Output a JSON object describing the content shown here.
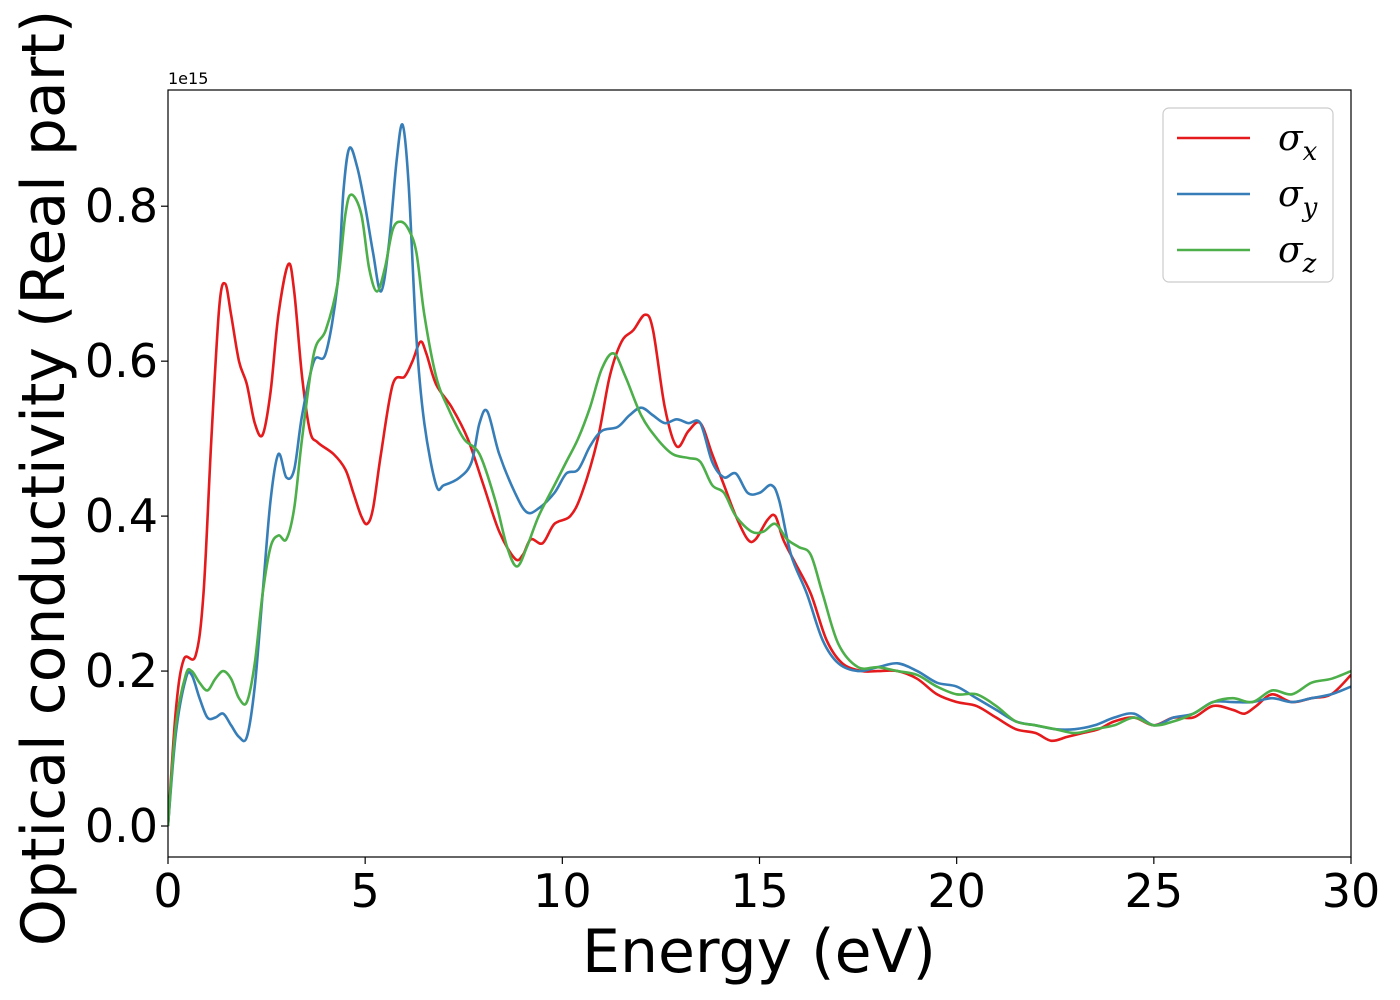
{
  "chart_data": {
    "type": "line",
    "xlabel": "Energy (eV)",
    "ylabel": "Optical conductivity (Real part)",
    "y_offset_label": "1e15",
    "xlim": [
      0,
      30
    ],
    "ylim": [
      -0.04,
      0.95
    ],
    "x_ticks": [
      0,
      5,
      10,
      15,
      20,
      25,
      30
    ],
    "x_tick_labels": [
      "0",
      "5",
      "10",
      "15",
      "20",
      "25",
      "30"
    ],
    "y_ticks": [
      0.0,
      0.2,
      0.4,
      0.6,
      0.8
    ],
    "y_tick_labels": [
      "0.0",
      "0.2",
      "0.4",
      "0.6",
      "0.8"
    ],
    "grid": false,
    "legend_position": "top-right",
    "series": [
      {
        "name": "σx",
        "symbol": "σ",
        "subscript": "x",
        "color": "#e41a1c",
        "points": [
          [
            0,
            0
          ],
          [
            0.2,
            0.15
          ],
          [
            0.4,
            0.215
          ],
          [
            0.7,
            0.22
          ],
          [
            0.9,
            0.3
          ],
          [
            1.1,
            0.5
          ],
          [
            1.3,
            0.67
          ],
          [
            1.45,
            0.7
          ],
          [
            1.6,
            0.66
          ],
          [
            1.8,
            0.6
          ],
          [
            2.0,
            0.57
          ],
          [
            2.2,
            0.52
          ],
          [
            2.4,
            0.505
          ],
          [
            2.6,
            0.56
          ],
          [
            2.8,
            0.66
          ],
          [
            3.05,
            0.725
          ],
          [
            3.2,
            0.69
          ],
          [
            3.4,
            0.58
          ],
          [
            3.6,
            0.51
          ],
          [
            3.8,
            0.495
          ],
          [
            4.2,
            0.48
          ],
          [
            4.5,
            0.46
          ],
          [
            4.7,
            0.43
          ],
          [
            4.9,
            0.4
          ],
          [
            5.05,
            0.39
          ],
          [
            5.2,
            0.41
          ],
          [
            5.4,
            0.48
          ],
          [
            5.7,
            0.57
          ],
          [
            6.0,
            0.58
          ],
          [
            6.2,
            0.6
          ],
          [
            6.4,
            0.625
          ],
          [
            6.55,
            0.61
          ],
          [
            6.8,
            0.57
          ],
          [
            7.2,
            0.54
          ],
          [
            7.6,
            0.5
          ],
          [
            8.0,
            0.44
          ],
          [
            8.4,
            0.38
          ],
          [
            8.8,
            0.345
          ],
          [
            9.0,
            0.35
          ],
          [
            9.2,
            0.37
          ],
          [
            9.5,
            0.365
          ],
          [
            9.8,
            0.39
          ],
          [
            10.2,
            0.4
          ],
          [
            10.5,
            0.43
          ],
          [
            10.9,
            0.5
          ],
          [
            11.2,
            0.58
          ],
          [
            11.5,
            0.625
          ],
          [
            11.8,
            0.64
          ],
          [
            12.1,
            0.66
          ],
          [
            12.3,
            0.64
          ],
          [
            12.6,
            0.54
          ],
          [
            12.9,
            0.49
          ],
          [
            13.2,
            0.51
          ],
          [
            13.5,
            0.52
          ],
          [
            13.8,
            0.48
          ],
          [
            14.1,
            0.44
          ],
          [
            14.4,
            0.4
          ],
          [
            14.7,
            0.37
          ],
          [
            14.9,
            0.37
          ],
          [
            15.2,
            0.395
          ],
          [
            15.4,
            0.4
          ],
          [
            15.6,
            0.37
          ],
          [
            15.9,
            0.34
          ],
          [
            16.3,
            0.3
          ],
          [
            16.7,
            0.24
          ],
          [
            17.1,
            0.21
          ],
          [
            17.6,
            0.2
          ],
          [
            18.0,
            0.2
          ],
          [
            18.5,
            0.2
          ],
          [
            19.0,
            0.19
          ],
          [
            19.5,
            0.17
          ],
          [
            20.0,
            0.16
          ],
          [
            20.5,
            0.155
          ],
          [
            21.0,
            0.14
          ],
          [
            21.5,
            0.125
          ],
          [
            22.0,
            0.12
          ],
          [
            22.4,
            0.11
          ],
          [
            22.8,
            0.115
          ],
          [
            23.2,
            0.12
          ],
          [
            23.6,
            0.125
          ],
          [
            24.0,
            0.135
          ],
          [
            24.5,
            0.14
          ],
          [
            25.0,
            0.13
          ],
          [
            25.5,
            0.14
          ],
          [
            26.0,
            0.14
          ],
          [
            26.5,
            0.155
          ],
          [
            27.0,
            0.15
          ],
          [
            27.3,
            0.145
          ],
          [
            27.6,
            0.155
          ],
          [
            28.0,
            0.17
          ],
          [
            28.5,
            0.16
          ],
          [
            29.0,
            0.165
          ],
          [
            29.5,
            0.17
          ],
          [
            30.0,
            0.195
          ]
        ]
      },
      {
        "name": "σy",
        "symbol": "σ",
        "subscript": "y",
        "color": "#377eb8",
        "points": [
          [
            0,
            0
          ],
          [
            0.2,
            0.12
          ],
          [
            0.45,
            0.19
          ],
          [
            0.6,
            0.195
          ],
          [
            0.8,
            0.165
          ],
          [
            1.0,
            0.14
          ],
          [
            1.2,
            0.14
          ],
          [
            1.4,
            0.145
          ],
          [
            1.6,
            0.13
          ],
          [
            1.8,
            0.115
          ],
          [
            2.0,
            0.115
          ],
          [
            2.2,
            0.18
          ],
          [
            2.4,
            0.3
          ],
          [
            2.6,
            0.42
          ],
          [
            2.8,
            0.48
          ],
          [
            3.0,
            0.45
          ],
          [
            3.2,
            0.46
          ],
          [
            3.4,
            0.53
          ],
          [
            3.7,
            0.6
          ],
          [
            4.0,
            0.61
          ],
          [
            4.3,
            0.7
          ],
          [
            4.45,
            0.82
          ],
          [
            4.6,
            0.875
          ],
          [
            4.8,
            0.85
          ],
          [
            5.0,
            0.8
          ],
          [
            5.2,
            0.74
          ],
          [
            5.4,
            0.69
          ],
          [
            5.6,
            0.75
          ],
          [
            5.8,
            0.86
          ],
          [
            5.95,
            0.905
          ],
          [
            6.1,
            0.83
          ],
          [
            6.3,
            0.63
          ],
          [
            6.5,
            0.52
          ],
          [
            6.8,
            0.44
          ],
          [
            7.0,
            0.44
          ],
          [
            7.4,
            0.45
          ],
          [
            7.7,
            0.47
          ],
          [
            7.9,
            0.52
          ],
          [
            8.1,
            0.535
          ],
          [
            8.4,
            0.48
          ],
          [
            8.8,
            0.43
          ],
          [
            9.1,
            0.405
          ],
          [
            9.4,
            0.41
          ],
          [
            9.8,
            0.43
          ],
          [
            10.1,
            0.455
          ],
          [
            10.4,
            0.46
          ],
          [
            10.7,
            0.49
          ],
          [
            11.0,
            0.51
          ],
          [
            11.4,
            0.515
          ],
          [
            11.7,
            0.53
          ],
          [
            12.0,
            0.54
          ],
          [
            12.3,
            0.53
          ],
          [
            12.6,
            0.52
          ],
          [
            12.9,
            0.525
          ],
          [
            13.2,
            0.52
          ],
          [
            13.5,
            0.52
          ],
          [
            13.8,
            0.47
          ],
          [
            14.1,
            0.45
          ],
          [
            14.4,
            0.455
          ],
          [
            14.7,
            0.43
          ],
          [
            15.0,
            0.43
          ],
          [
            15.3,
            0.44
          ],
          [
            15.5,
            0.42
          ],
          [
            15.8,
            0.35
          ],
          [
            16.2,
            0.3
          ],
          [
            16.6,
            0.24
          ],
          [
            17.0,
            0.21
          ],
          [
            17.5,
            0.2
          ],
          [
            18.0,
            0.205
          ],
          [
            18.5,
            0.21
          ],
          [
            19.0,
            0.2
          ],
          [
            19.5,
            0.185
          ],
          [
            20.0,
            0.18
          ],
          [
            20.5,
            0.165
          ],
          [
            21.0,
            0.15
          ],
          [
            21.5,
            0.135
          ],
          [
            22.0,
            0.13
          ],
          [
            22.5,
            0.125
          ],
          [
            23.0,
            0.125
          ],
          [
            23.5,
            0.13
          ],
          [
            24.0,
            0.14
          ],
          [
            24.5,
            0.145
          ],
          [
            25.0,
            0.13
          ],
          [
            25.5,
            0.14
          ],
          [
            26.0,
            0.145
          ],
          [
            26.5,
            0.16
          ],
          [
            27.0,
            0.16
          ],
          [
            27.5,
            0.16
          ],
          [
            28.0,
            0.165
          ],
          [
            28.5,
            0.16
          ],
          [
            29.0,
            0.165
          ],
          [
            29.5,
            0.17
          ],
          [
            30.0,
            0.18
          ]
        ]
      },
      {
        "name": "σz",
        "symbol": "σ",
        "subscript": "z",
        "color": "#4daf4a",
        "points": [
          [
            0,
            0
          ],
          [
            0.2,
            0.13
          ],
          [
            0.45,
            0.195
          ],
          [
            0.6,
            0.2
          ],
          [
            0.8,
            0.185
          ],
          [
            1.0,
            0.175
          ],
          [
            1.2,
            0.19
          ],
          [
            1.4,
            0.2
          ],
          [
            1.6,
            0.19
          ],
          [
            1.8,
            0.165
          ],
          [
            2.0,
            0.16
          ],
          [
            2.2,
            0.21
          ],
          [
            2.4,
            0.3
          ],
          [
            2.6,
            0.36
          ],
          [
            2.8,
            0.375
          ],
          [
            3.0,
            0.37
          ],
          [
            3.2,
            0.41
          ],
          [
            3.4,
            0.5
          ],
          [
            3.7,
            0.61
          ],
          [
            4.0,
            0.64
          ],
          [
            4.3,
            0.7
          ],
          [
            4.5,
            0.79
          ],
          [
            4.65,
            0.815
          ],
          [
            4.9,
            0.79
          ],
          [
            5.1,
            0.72
          ],
          [
            5.3,
            0.69
          ],
          [
            5.5,
            0.72
          ],
          [
            5.7,
            0.77
          ],
          [
            5.9,
            0.78
          ],
          [
            6.1,
            0.77
          ],
          [
            6.3,
            0.74
          ],
          [
            6.5,
            0.66
          ],
          [
            6.8,
            0.58
          ],
          [
            7.1,
            0.54
          ],
          [
            7.5,
            0.5
          ],
          [
            7.9,
            0.48
          ],
          [
            8.3,
            0.42
          ],
          [
            8.6,
            0.36
          ],
          [
            8.85,
            0.335
          ],
          [
            9.1,
            0.36
          ],
          [
            9.4,
            0.4
          ],
          [
            9.8,
            0.44
          ],
          [
            10.1,
            0.47
          ],
          [
            10.4,
            0.5
          ],
          [
            10.7,
            0.54
          ],
          [
            11.0,
            0.59
          ],
          [
            11.3,
            0.61
          ],
          [
            11.6,
            0.58
          ],
          [
            12.0,
            0.53
          ],
          [
            12.4,
            0.5
          ],
          [
            12.8,
            0.48
          ],
          [
            13.2,
            0.475
          ],
          [
            13.5,
            0.47
          ],
          [
            13.8,
            0.44
          ],
          [
            14.1,
            0.43
          ],
          [
            14.4,
            0.4
          ],
          [
            14.8,
            0.38
          ],
          [
            15.1,
            0.38
          ],
          [
            15.4,
            0.39
          ],
          [
            15.7,
            0.37
          ],
          [
            16.0,
            0.36
          ],
          [
            16.3,
            0.35
          ],
          [
            16.6,
            0.3
          ],
          [
            17.0,
            0.235
          ],
          [
            17.5,
            0.205
          ],
          [
            18.0,
            0.205
          ],
          [
            18.5,
            0.2
          ],
          [
            19.0,
            0.195
          ],
          [
            19.5,
            0.18
          ],
          [
            20.0,
            0.17
          ],
          [
            20.5,
            0.17
          ],
          [
            21.0,
            0.155
          ],
          [
            21.5,
            0.135
          ],
          [
            22.0,
            0.13
          ],
          [
            22.5,
            0.125
          ],
          [
            23.0,
            0.12
          ],
          [
            23.5,
            0.125
          ],
          [
            24.0,
            0.13
          ],
          [
            24.5,
            0.14
          ],
          [
            25.0,
            0.13
          ],
          [
            25.5,
            0.135
          ],
          [
            26.0,
            0.145
          ],
          [
            26.5,
            0.16
          ],
          [
            27.0,
            0.165
          ],
          [
            27.5,
            0.16
          ],
          [
            28.0,
            0.175
          ],
          [
            28.5,
            0.17
          ],
          [
            29.0,
            0.185
          ],
          [
            29.5,
            0.19
          ],
          [
            30.0,
            0.2
          ]
        ]
      }
    ]
  }
}
